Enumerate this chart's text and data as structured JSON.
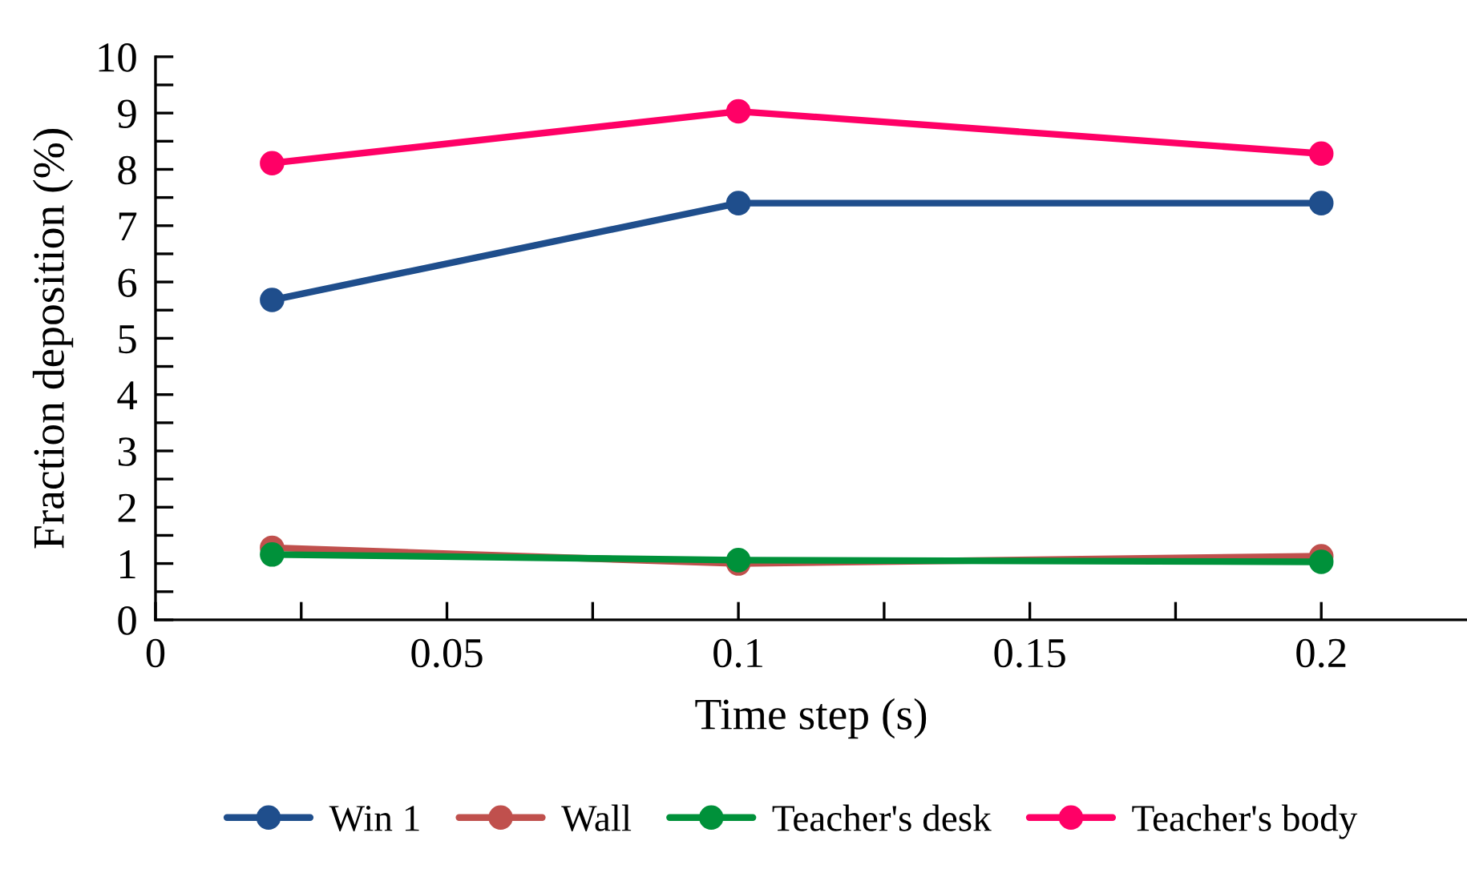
{
  "chart_data": {
    "type": "line",
    "xlabel": "Time step (s)",
    "ylabel": "Fraction deposition (%)",
    "x": [
      0.02,
      0.1,
      0.2
    ],
    "xlim": [
      0,
      0.225
    ],
    "xticks": [
      0,
      {
        "value": 0.025,
        "label": null
      },
      0.05,
      {
        "value": 0.075,
        "label": null
      },
      0.1,
      {
        "value": 0.125,
        "label": null
      },
      0.15,
      {
        "value": 0.175,
        "label": null
      },
      0.2
    ],
    "ylim": [
      0,
      10
    ],
    "yticks": [
      0,
      {
        "value": 0.5,
        "label": null
      },
      1,
      {
        "value": 1.5,
        "label": null
      },
      2,
      {
        "value": 2.5,
        "label": null
      },
      3,
      {
        "value": 3.5,
        "label": null
      },
      4,
      {
        "value": 4.5,
        "label": null
      },
      5,
      {
        "value": 5.5,
        "label": null
      },
      6,
      {
        "value": 6.5,
        "label": null
      },
      7,
      {
        "value": 7.5,
        "label": null
      },
      8,
      {
        "value": 8.5,
        "label": null
      },
      9,
      {
        "value": 9.5,
        "label": null
      },
      10
    ],
    "marker": "circle",
    "line_style": "solid",
    "grid": false,
    "legend": "bottom",
    "series": [
      {
        "name": "Win 1",
        "color": "#1f4e8c",
        "values": [
          5.68,
          7.4,
          7.4
        ]
      },
      {
        "name": "Wall",
        "color": "#c0504d",
        "values": [
          1.28,
          1.0,
          1.13
        ]
      },
      {
        "name": "Teacher's desk",
        "color": "#00913a",
        "values": [
          1.16,
          1.06,
          1.03
        ]
      },
      {
        "name": "Teacher's body",
        "color": "#ff0066",
        "values": [
          8.11,
          9.03,
          8.28
        ]
      }
    ]
  }
}
